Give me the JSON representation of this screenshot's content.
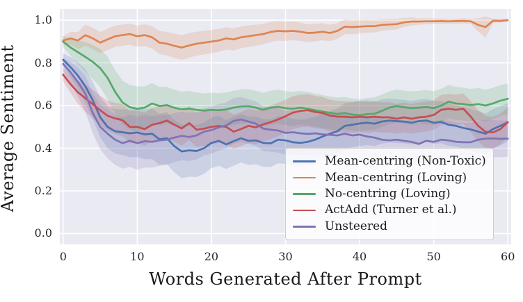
{
  "figure": {
    "background": "#ffffff",
    "plot_background": "#eaeaf2",
    "grid_color": "#ffffff",
    "text_color": "#262626"
  },
  "chart_data": {
    "type": "line",
    "title": "",
    "xlabel": "Words Generated After Prompt",
    "ylabel": "Average Sentiment",
    "xlim": [
      -0.45,
      60.45
    ],
    "ylim": [
      -0.0505,
      1.0525
    ],
    "grid": true,
    "legend_position": "lower right",
    "x_ticks": [
      0,
      10,
      20,
      30,
      40,
      50,
      60
    ],
    "x_tick_labels": [
      "0",
      "10",
      "20",
      "30",
      "40",
      "50",
      "60"
    ],
    "y_ticks": [
      0.0,
      0.2,
      0.4,
      0.6,
      0.8,
      1.0
    ],
    "y_tick_labels": [
      "0.0",
      "0.2",
      "0.4",
      "0.6",
      "0.8",
      "1.0"
    ],
    "x": [
      0,
      1,
      2,
      3,
      4,
      5,
      6,
      7,
      8,
      9,
      10,
      11,
      12,
      13,
      14,
      15,
      16,
      17,
      18,
      19,
      20,
      21,
      22,
      23,
      24,
      25,
      26,
      27,
      28,
      29,
      30,
      31,
      32,
      33,
      34,
      35,
      36,
      37,
      38,
      39,
      40,
      41,
      42,
      43,
      44,
      45,
      46,
      47,
      48,
      49,
      50,
      51,
      52,
      53,
      54,
      55,
      56,
      57,
      58,
      59,
      60
    ],
    "series": [
      {
        "name": "Mean-centring (Non-Toxic)",
        "color": "#4C72B0",
        "values": [
          0.815,
          0.78,
          0.74,
          0.69,
          0.625,
          0.545,
          0.5,
          0.48,
          0.475,
          0.47,
          0.474,
          0.465,
          0.468,
          0.442,
          0.447,
          0.41,
          0.385,
          0.39,
          0.387,
          0.4,
          0.425,
          0.435,
          0.418,
          0.433,
          0.447,
          0.435,
          0.437,
          0.425,
          0.423,
          0.44,
          0.437,
          0.428,
          0.425,
          0.43,
          0.44,
          0.455,
          0.468,
          0.48,
          0.505,
          0.51,
          0.516,
          0.52,
          0.515,
          0.525,
          0.53,
          0.527,
          0.525,
          0.52,
          0.527,
          0.53,
          0.52,
          0.523,
          0.51,
          0.505,
          0.495,
          0.488,
          0.478,
          0.468,
          0.49,
          0.505,
          0.522
        ],
        "band": [
          [
            0,
            0.03
          ],
          [
            3,
            0.08
          ],
          [
            6,
            0.1
          ],
          [
            10,
            0.115
          ],
          [
            16,
            0.125
          ],
          [
            22,
            0.115
          ],
          [
            30,
            0.11
          ],
          [
            40,
            0.105
          ],
          [
            50,
            0.1
          ],
          [
            57,
            0.095
          ],
          [
            60,
            0.09
          ]
        ]
      },
      {
        "name": "Mean-centring (Loving)",
        "color": "#DD8452",
        "values": [
          0.905,
          0.915,
          0.905,
          0.93,
          0.915,
          0.895,
          0.91,
          0.925,
          0.93,
          0.935,
          0.925,
          0.93,
          0.92,
          0.895,
          0.89,
          0.88,
          0.872,
          0.882,
          0.89,
          0.895,
          0.9,
          0.905,
          0.915,
          0.91,
          0.92,
          0.925,
          0.93,
          0.935,
          0.945,
          0.95,
          0.948,
          0.95,
          0.946,
          0.94,
          0.942,
          0.946,
          0.94,
          0.95,
          0.97,
          0.968,
          0.97,
          0.972,
          0.972,
          0.978,
          0.98,
          0.982,
          0.99,
          0.994,
          0.994,
          0.995,
          0.995,
          0.996,
          0.995,
          0.996,
          0.997,
          0.995,
          0.978,
          0.968,
          0.998,
          0.997,
          1.0
        ],
        "band": [
          [
            0,
            0.02
          ],
          [
            3,
            0.05
          ],
          [
            10,
            0.05
          ],
          [
            16,
            0.058
          ],
          [
            25,
            0.05
          ],
          [
            30,
            0.045
          ],
          [
            35,
            0.04
          ],
          [
            40,
            0.032
          ],
          [
            45,
            0.025
          ],
          [
            48,
            0.015
          ],
          [
            52,
            0.012
          ],
          [
            55,
            0.012
          ],
          [
            57,
            0.05
          ],
          [
            58,
            0.01
          ],
          [
            60,
            0.006
          ]
        ]
      },
      {
        "name": "No-centring (Loving)",
        "color": "#55A868",
        "values": [
          0.9,
          0.872,
          0.85,
          0.828,
          0.805,
          0.775,
          0.73,
          0.665,
          0.615,
          0.592,
          0.585,
          0.59,
          0.61,
          0.598,
          0.602,
          0.59,
          0.582,
          0.586,
          0.58,
          0.576,
          0.58,
          0.578,
          0.582,
          0.59,
          0.596,
          0.597,
          0.59,
          0.58,
          0.59,
          0.594,
          0.588,
          0.585,
          0.59,
          0.585,
          0.578,
          0.572,
          0.566,
          0.561,
          0.565,
          0.558,
          0.555,
          0.56,
          0.562,
          0.575,
          0.59,
          0.598,
          0.592,
          0.588,
          0.59,
          0.593,
          0.588,
          0.6,
          0.618,
          0.61,
          0.607,
          0.602,
          0.607,
          0.6,
          0.61,
          0.623,
          0.632
        ],
        "band": [
          [
            0,
            0.025
          ],
          [
            3,
            0.07
          ],
          [
            6,
            0.1
          ],
          [
            10,
            0.105
          ],
          [
            14,
            0.085
          ],
          [
            20,
            0.08
          ],
          [
            30,
            0.08
          ],
          [
            40,
            0.075
          ],
          [
            50,
            0.08
          ],
          [
            60,
            0.072
          ]
        ]
      },
      {
        "name": "ActAdd (Turner et al.)",
        "color": "#C44E52",
        "values": [
          0.745,
          0.7,
          0.662,
          0.634,
          0.607,
          0.578,
          0.552,
          0.54,
          0.532,
          0.5,
          0.5,
          0.49,
          0.51,
          0.518,
          0.53,
          0.51,
          0.493,
          0.518,
          0.487,
          0.492,
          0.5,
          0.505,
          0.5,
          0.478,
          0.49,
          0.505,
          0.498,
          0.512,
          0.522,
          0.535,
          0.55,
          0.567,
          0.575,
          0.578,
          0.57,
          0.565,
          0.553,
          0.548,
          0.548,
          0.545,
          0.548,
          0.545,
          0.548,
          0.545,
          0.545,
          0.538,
          0.545,
          0.538,
          0.545,
          0.548,
          0.556,
          0.58,
          0.585,
          0.58,
          0.585,
          0.548,
          0.505,
          0.477,
          0.474,
          0.49,
          0.522
        ],
        "band": [
          [
            0,
            0.03
          ],
          [
            3,
            0.065
          ],
          [
            8,
            0.075
          ],
          [
            15,
            0.08
          ],
          [
            25,
            0.08
          ],
          [
            35,
            0.075
          ],
          [
            45,
            0.07
          ],
          [
            52,
            0.07
          ],
          [
            57,
            0.075
          ],
          [
            60,
            0.07
          ]
        ]
      },
      {
        "name": "Unsteered",
        "color": "#8172B3",
        "values": [
          0.795,
          0.755,
          0.71,
          0.655,
          0.565,
          0.5,
          0.468,
          0.44,
          0.424,
          0.435,
          0.424,
          0.433,
          0.43,
          0.437,
          0.44,
          0.45,
          0.458,
          0.453,
          0.46,
          0.478,
          0.485,
          0.498,
          0.507,
          0.528,
          0.535,
          0.525,
          0.515,
          0.492,
          0.487,
          0.483,
          0.472,
          0.475,
          0.47,
          0.467,
          0.47,
          0.465,
          0.463,
          0.46,
          0.468,
          0.46,
          0.464,
          0.455,
          0.45,
          0.44,
          0.437,
          0.44,
          0.435,
          0.43,
          0.42,
          0.435,
          0.43,
          0.44,
          0.437,
          0.43,
          0.428,
          0.428,
          0.44,
          0.445,
          0.446,
          0.444,
          0.445
        ],
        "band": [
          [
            0,
            0.03
          ],
          [
            3,
            0.085
          ],
          [
            6,
            0.115
          ],
          [
            10,
            0.125
          ],
          [
            15,
            0.115
          ],
          [
            25,
            0.105
          ],
          [
            35,
            0.1
          ],
          [
            45,
            0.095
          ],
          [
            55,
            0.09
          ],
          [
            60,
            0.085
          ]
        ]
      }
    ]
  }
}
